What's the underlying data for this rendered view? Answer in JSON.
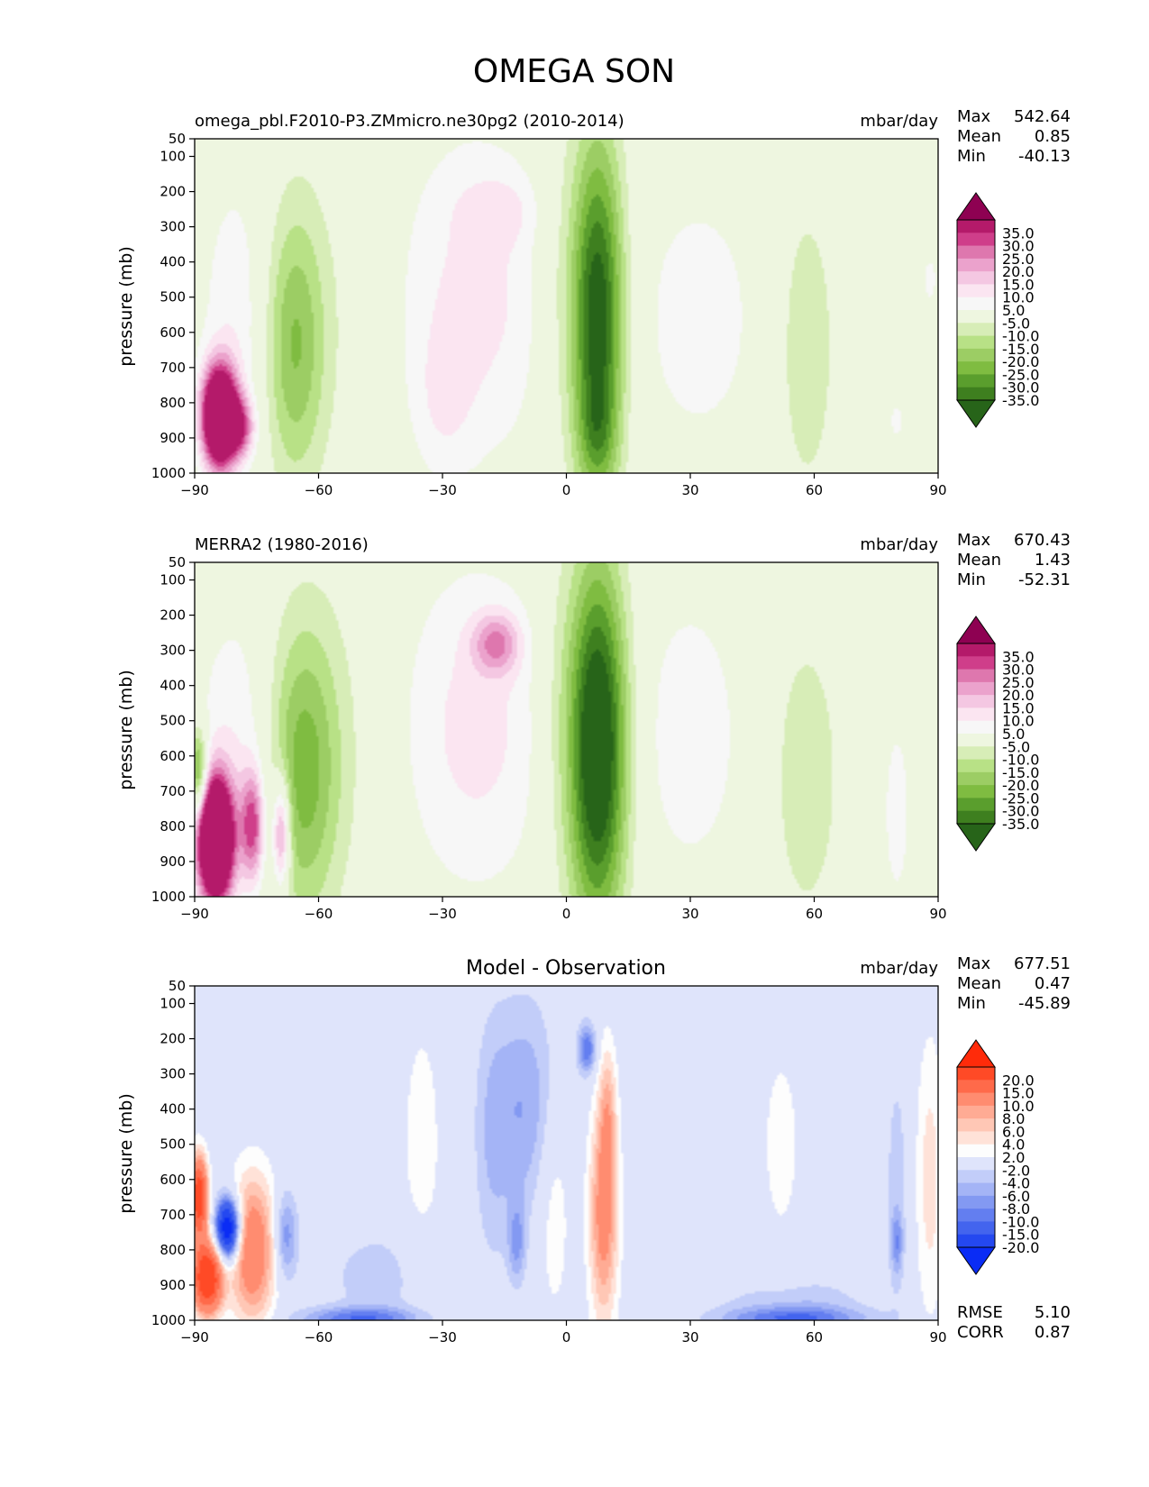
{
  "title": "OMEGA SON",
  "ylabel": "pressure (mb)",
  "y_ticks": [
    "50",
    "100",
    "200",
    "300",
    "400",
    "500",
    "600",
    "700",
    "800",
    "900",
    "1000"
  ],
  "x_ticks": [
    "−90",
    "−60",
    "−30",
    "0",
    "30",
    "60",
    "90"
  ],
  "panels": [
    {
      "id": "model",
      "left_title": "omega_pbl.F2010-P3.ZMmicro.ne30pg2 (2010-2014)",
      "center_title": "",
      "units": "mbar/day",
      "stats": [
        {
          "label": "Max",
          "value": "542.64"
        },
        {
          "label": "Mean",
          "value": "0.85"
        },
        {
          "label": "Min",
          "value": "-40.13"
        }
      ],
      "colorbar": {
        "labels": [
          "35.0",
          "30.0",
          "25.0",
          "20.0",
          "15.0",
          "10.0",
          "5.0",
          "-5.0",
          "-10.0",
          "-15.0",
          "-20.0",
          "-25.0",
          "-30.0",
          "-35.0"
        ],
        "colors_top_to_bottom": [
          "#8e0152",
          "#b41a6a",
          "#cf3e8a",
          "#de77ae",
          "#eba2cc",
          "#f4c7e2",
          "#fbe5f1",
          "#f7f7f7",
          "#eef6e0",
          "#d7edb7",
          "#b8e186",
          "#9ccd64",
          "#7fbc41",
          "#5a9e2d",
          "#3e7f1f",
          "#276419"
        ],
        "extend": "both"
      },
      "footer_stats": []
    },
    {
      "id": "obs",
      "left_title": "MERRA2 (1980-2016)",
      "center_title": "",
      "units": "mbar/day",
      "stats": [
        {
          "label": "Max",
          "value": "670.43"
        },
        {
          "label": "Mean",
          "value": "1.43"
        },
        {
          "label": "Min",
          "value": "-52.31"
        }
      ],
      "colorbar": {
        "labels": [
          "35.0",
          "30.0",
          "25.0",
          "20.0",
          "15.0",
          "10.0",
          "5.0",
          "-5.0",
          "-10.0",
          "-15.0",
          "-20.0",
          "-25.0",
          "-30.0",
          "-35.0"
        ],
        "colors_top_to_bottom": [
          "#8e0152",
          "#b41a6a",
          "#cf3e8a",
          "#de77ae",
          "#eba2cc",
          "#f4c7e2",
          "#fbe5f1",
          "#f7f7f7",
          "#eef6e0",
          "#d7edb7",
          "#b8e186",
          "#9ccd64",
          "#7fbc41",
          "#5a9e2d",
          "#3e7f1f",
          "#276419"
        ],
        "extend": "both"
      },
      "footer_stats": []
    },
    {
      "id": "diff",
      "left_title": "",
      "center_title": "Model - Observation",
      "units": "mbar/day",
      "stats": [
        {
          "label": "Max",
          "value": "677.51"
        },
        {
          "label": "Mean",
          "value": "0.47"
        },
        {
          "label": "Min",
          "value": "-45.89"
        }
      ],
      "colorbar": {
        "labels": [
          "20.0",
          "15.0",
          "10.0",
          "8.0",
          "6.0",
          "4.0",
          "2.0",
          "-2.0",
          "-4.0",
          "-6.0",
          "-8.0",
          "-10.0",
          "-15.0",
          "-20.0"
        ],
        "colors_top_to_bottom": [
          "#ff2b0a",
          "#ff4a26",
          "#ff6a4a",
          "#ff8c70",
          "#ffab94",
          "#ffc7b5",
          "#ffe2d8",
          "#fdfdfd",
          "#dfe4fb",
          "#c2cdf9",
          "#a4b4f6",
          "#8399f2",
          "#637ef0",
          "#4364ee",
          "#2448f0",
          "#0a2cf5"
        ],
        "extend": "both"
      },
      "footer_stats": [
        {
          "label": "RMSE",
          "value": "5.10"
        },
        {
          "label": "CORR",
          "value": "0.87"
        }
      ]
    }
  ],
  "chart_data": {
    "type": "heatmap",
    "title": "OMEGA SON",
    "xlabel": "",
    "ylabel": "pressure (mb)",
    "xlim": [
      -90,
      90
    ],
    "ylim": [
      1000,
      50
    ],
    "x_ticks": [
      -90,
      -60,
      -30,
      0,
      30,
      60,
      90
    ],
    "y_ticks": [
      50,
      100,
      200,
      300,
      400,
      500,
      600,
      700,
      800,
      900,
      1000
    ],
    "fields": [
      {
        "name": "model",
        "units": "mbar/day",
        "levels": [
          -35,
          -30,
          -25,
          -20,
          -15,
          -10,
          -5,
          5,
          10,
          15,
          20,
          25,
          30,
          35
        ],
        "blobs": [
          {
            "lat": 7.5,
            "p": 560,
            "dlat": 4.5,
            "dp": 360,
            "v": -42
          },
          {
            "lat": 7.5,
            "p": 880,
            "dlat": 3,
            "dp": 90,
            "v": -8
          },
          {
            "lat": -66,
            "p": 640,
            "dlat": 5,
            "dp": 270,
            "v": -18
          },
          {
            "lat": -60,
            "p": 560,
            "dlat": 9,
            "dp": 330,
            "v": -4
          },
          {
            "lat": -3,
            "p": 440,
            "dlat": 4,
            "dp": 340,
            "v": -5
          },
          {
            "lat": 58,
            "p": 640,
            "dlat": 5,
            "dp": 300,
            "v": -10
          },
          {
            "lat": -22,
            "p": 500,
            "dlat": 13,
            "dp": 330,
            "v": 12
          },
          {
            "lat": -30,
            "p": 800,
            "dlat": 5,
            "dp": 150,
            "v": 6
          },
          {
            "lat": -16,
            "p": 250,
            "dlat": 7,
            "dp": 70,
            "v": 6
          },
          {
            "lat": 32,
            "p": 560,
            "dlat": 13,
            "dp": 330,
            "v": 7
          },
          {
            "lat": -80,
            "p": 560,
            "dlat": 6,
            "dp": 300,
            "v": 9
          },
          {
            "lat": -84,
            "p": 840,
            "dlat": 3,
            "dp": 100,
            "v": 70
          },
          {
            "lat": -79,
            "p": 870,
            "dlat": 2.5,
            "dp": 60,
            "v": 25
          },
          {
            "lat": 88,
            "p": 450,
            "dlat": 2,
            "dp": 80,
            "v": 6
          },
          {
            "lat": 80,
            "p": 850,
            "dlat": 2,
            "dp": 60,
            "v": 6
          }
        ]
      },
      {
        "name": "obs",
        "units": "mbar/day",
        "levels": [
          -35,
          -30,
          -25,
          -20,
          -15,
          -10,
          -5,
          5,
          10,
          15,
          20,
          25,
          30,
          35
        ],
        "blobs": [
          {
            "lat": 7.5,
            "p": 570,
            "dlat": 5,
            "dp": 360,
            "v": -48
          },
          {
            "lat": -64,
            "p": 650,
            "dlat": 6,
            "dp": 290,
            "v": -20
          },
          {
            "lat": -58,
            "p": 560,
            "dlat": 10,
            "dp": 340,
            "v": -5
          },
          {
            "lat": -3,
            "p": 460,
            "dlat": 4,
            "dp": 340,
            "v": -5
          },
          {
            "lat": 58,
            "p": 660,
            "dlat": 6,
            "dp": 300,
            "v": -9
          },
          {
            "lat": -89,
            "p": 650,
            "dlat": 1.5,
            "dp": 90,
            "v": -30
          },
          {
            "lat": -22,
            "p": 520,
            "dlat": 13,
            "dp": 330,
            "v": 12
          },
          {
            "lat": -17,
            "p": 280,
            "dlat": 4,
            "dp": 60,
            "v": 20
          },
          {
            "lat": 30,
            "p": 540,
            "dlat": 10,
            "dp": 320,
            "v": 8
          },
          {
            "lat": -80,
            "p": 600,
            "dlat": 7,
            "dp": 300,
            "v": 10
          },
          {
            "lat": -85,
            "p": 840,
            "dlat": 3,
            "dp": 120,
            "v": 80
          },
          {
            "lat": -76,
            "p": 800,
            "dlat": 2,
            "dp": 110,
            "v": 30
          },
          {
            "lat": -69,
            "p": 820,
            "dlat": 1.5,
            "dp": 110,
            "v": 30
          },
          {
            "lat": 80,
            "p": 760,
            "dlat": 2.5,
            "dp": 200,
            "v": 8
          }
        ]
      },
      {
        "name": "diff",
        "units": "mbar/day",
        "levels": [
          -20,
          -15,
          -10,
          -8,
          -6,
          -4,
          -2,
          2,
          4,
          6,
          8,
          10,
          15,
          20
        ],
        "blobs": [
          {
            "lat": 9,
            "p": 700,
            "dlat": 2.5,
            "dp": 220,
            "v": 12
          },
          {
            "lat": 10,
            "p": 400,
            "dlat": 1.5,
            "dp": 140,
            "v": 6
          },
          {
            "lat": 5,
            "p": 230,
            "dlat": 1.5,
            "dp": 50,
            "v": -10
          },
          {
            "lat": -10,
            "p": 400,
            "dlat": 6,
            "dp": 220,
            "v": -6
          },
          {
            "lat": -18,
            "p": 500,
            "dlat": 3,
            "dp": 250,
            "v": -3
          },
          {
            "lat": -35,
            "p": 500,
            "dlat": 4,
            "dp": 300,
            "v": 3
          },
          {
            "lat": -3,
            "p": 650,
            "dlat": 3,
            "dp": 250,
            "v": 4
          },
          {
            "lat": -45,
            "p": 880,
            "dlat": 10,
            "dp": 110,
            "v": -3
          },
          {
            "lat": -50,
            "p": 995,
            "dlat": 10,
            "dp": 22,
            "v": -9
          },
          {
            "lat": 55,
            "p": 960,
            "dlat": 12,
            "dp": 60,
            "v": -4
          },
          {
            "lat": 55,
            "p": 995,
            "dlat": 12,
            "dp": 22,
            "v": -8
          },
          {
            "lat": 88,
            "p": 600,
            "dlat": 2.5,
            "dp": 300,
            "v": 5
          },
          {
            "lat": 52,
            "p": 500,
            "dlat": 5,
            "dp": 300,
            "v": 2.5
          },
          {
            "lat": 80,
            "p": 600,
            "dlat": 2,
            "dp": 250,
            "v": -3
          },
          {
            "lat": 80,
            "p": 780,
            "dlat": 1,
            "dp": 60,
            "v": -6
          },
          {
            "lat": -76,
            "p": 800,
            "dlat": 4,
            "dp": 150,
            "v": 14
          },
          {
            "lat": -68,
            "p": 760,
            "dlat": 2,
            "dp": 90,
            "v": -8
          },
          {
            "lat": -82,
            "p": 740,
            "dlat": 2,
            "dp": 60,
            "v": -28
          },
          {
            "lat": -87,
            "p": 880,
            "dlat": 2.5,
            "dp": 70,
            "v": 28
          },
          {
            "lat": -89,
            "p": 650,
            "dlat": 1.5,
            "dp": 80,
            "v": 25
          },
          {
            "lat": -12,
            "p": 780,
            "dlat": 1.5,
            "dp": 80,
            "v": -6
          }
        ]
      }
    ]
  }
}
